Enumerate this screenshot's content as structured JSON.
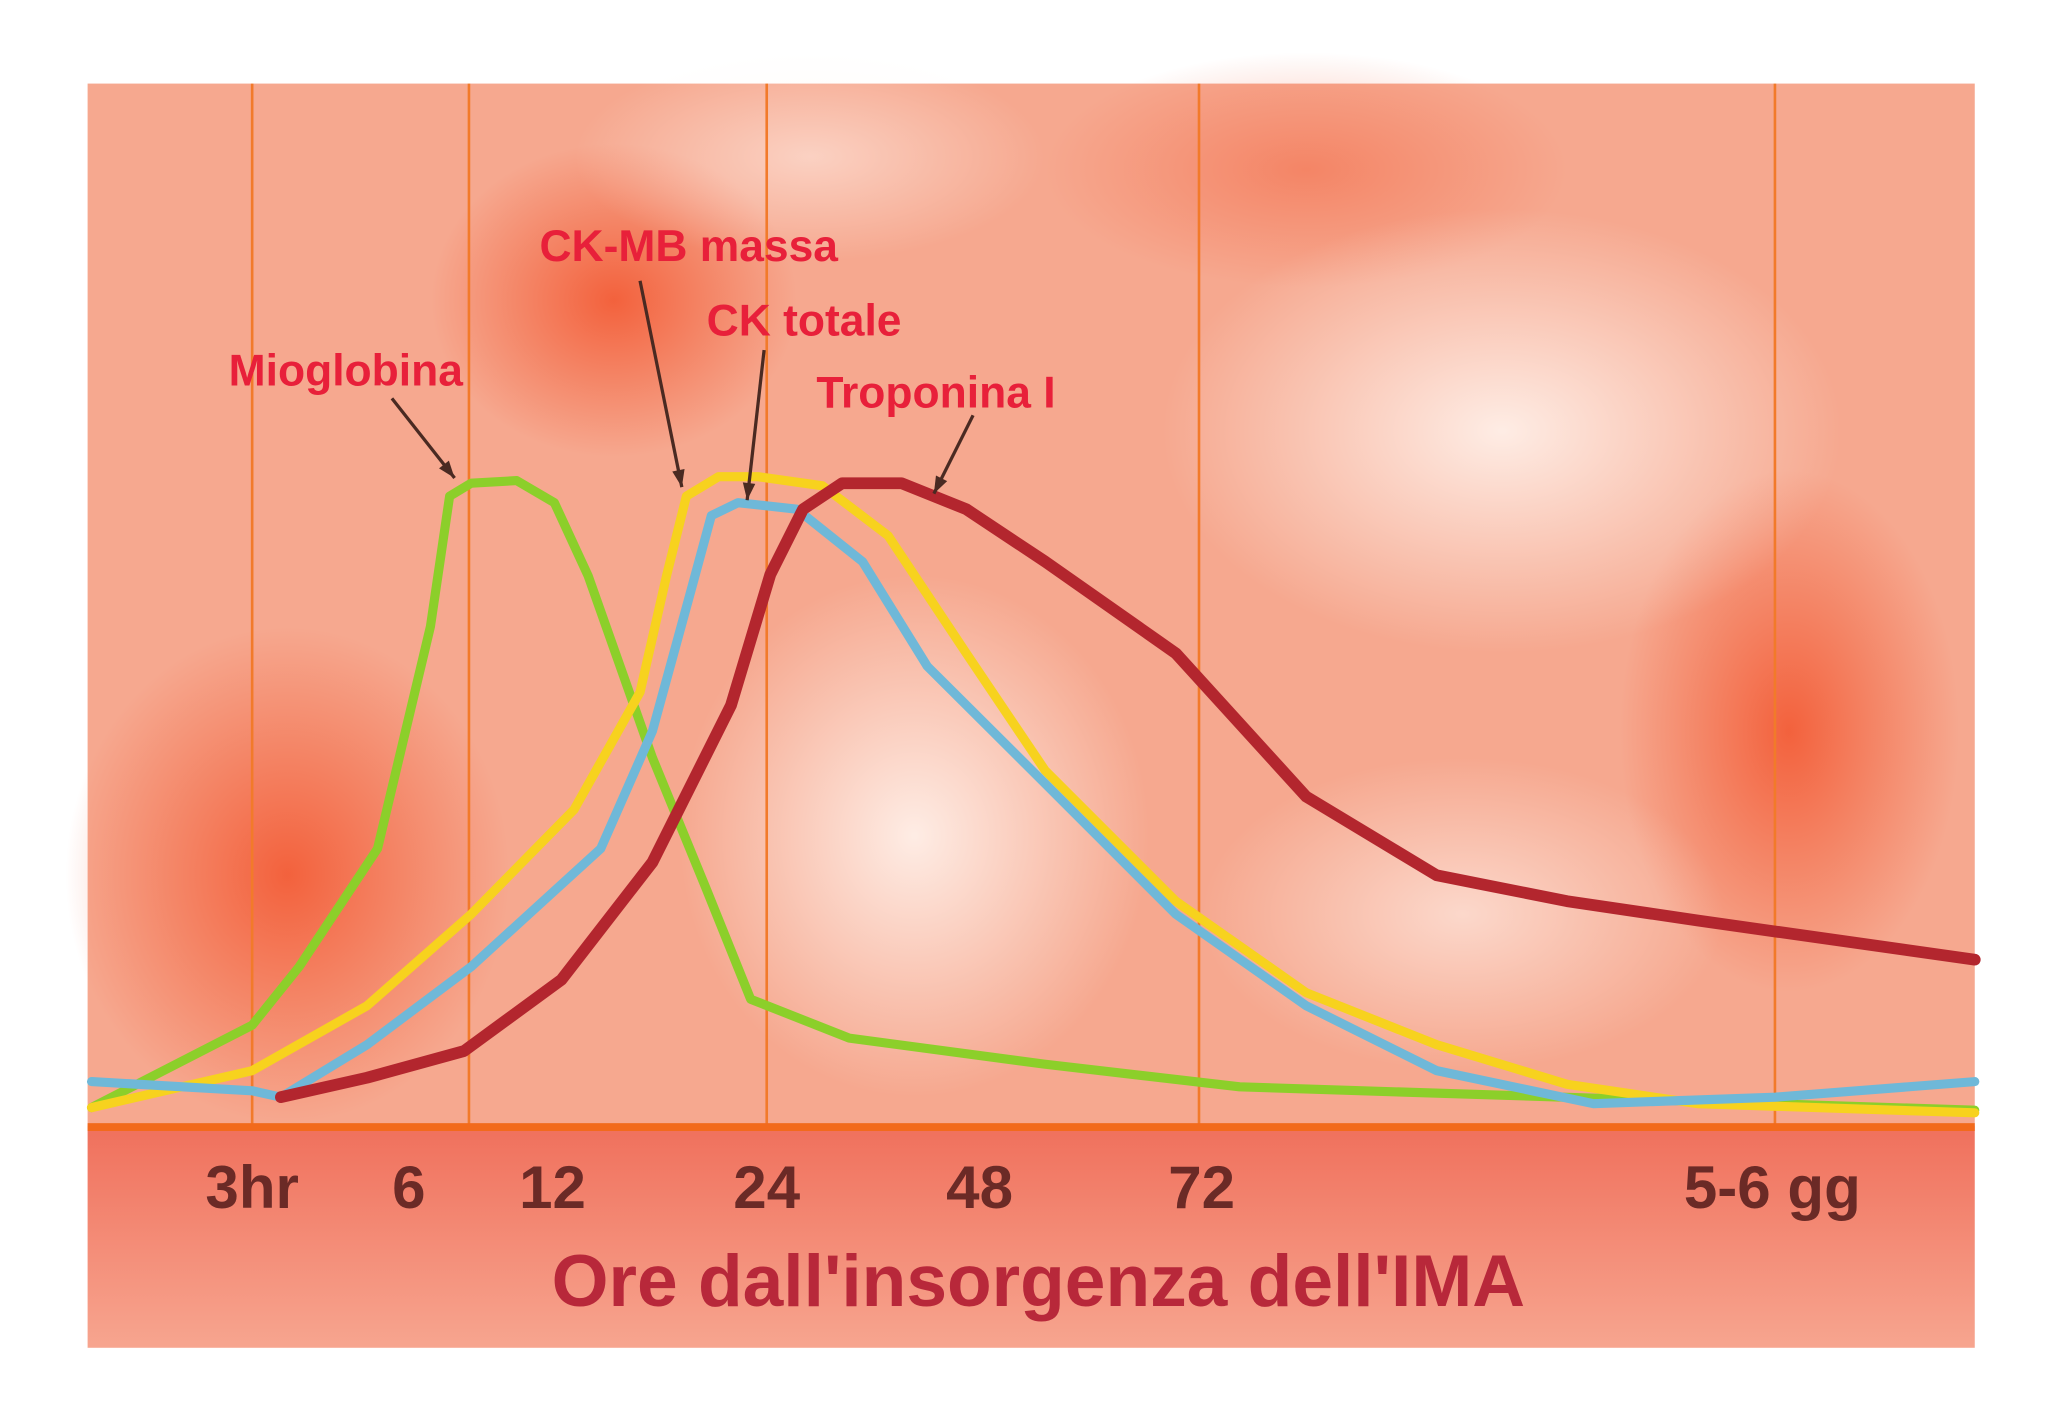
{
  "chart_data": {
    "type": "line",
    "title": "",
    "xlabel": "Ore dall'insorgenza dell'IMA",
    "ylabel": "",
    "x_tick_labels": [
      {
        "hours": 3,
        "label": "3hr"
      },
      {
        "hours": 6,
        "label": "6"
      },
      {
        "hours": 12,
        "label": "12"
      },
      {
        "hours": 24,
        "label": "24"
      },
      {
        "hours": 48,
        "label": "48"
      },
      {
        "hours": 72,
        "label": "72"
      },
      {
        "hours": 132,
        "label": "5-6 gg"
      }
    ],
    "grid": "vertical lines",
    "series": [
      {
        "name": "Mioglobina",
        "color": "#8ccf2a",
        "x": [
          0,
          3,
          3.9,
          5.4,
          6.9,
          7.7,
          8.6,
          10.5,
          12.1,
          14,
          17.6,
          20.6,
          23.1,
          33.3,
          55,
          76,
          110,
          152
        ],
        "y": [
          2.8,
          15.5,
          24.5,
          42.7,
          76.9,
          97,
          99,
          99.4,
          96,
          84.7,
          56.7,
          36.6,
          19.5,
          13.5,
          9.5,
          6,
          4.4,
          2.4
        ]
      },
      {
        "name": "CK-MB massa",
        "color": "#f7d21e",
        "x": [
          0,
          3,
          5.2,
          8.6,
          13.2,
          16.9,
          18.4,
          19.5,
          21.3,
          23.5,
          30.3,
          37.7,
          46.5,
          55.1,
          69.2,
          83,
          96.7,
          110.4,
          124.2,
          152
        ],
        "y": [
          2.8,
          8.5,
          18.5,
          32.6,
          48.7,
          66.8,
          84.9,
          97,
          100,
          100,
          98.6,
          90.9,
          72.8,
          54.7,
          34.6,
          20.5,
          12.5,
          6.4,
          3.4,
          2
        ]
      },
      {
        "name": "CK totale",
        "color": "#6fb8d8",
        "x": [
          0,
          3,
          3.55,
          5.2,
          8.6,
          14.7,
          17.6,
          19.8,
          20.9,
          22.4,
          27.4,
          34.8,
          42.1,
          55.1,
          69.2,
          83,
          96.7,
          113.2,
          132.3,
          152
        ],
        "y": [
          6.8,
          5.4,
          4.4,
          12.5,
          24.5,
          42.7,
          60.8,
          82.9,
          94,
          96,
          95,
          86.9,
          70.8,
          52.7,
          32.6,
          18.5,
          8.5,
          3.4,
          4.4,
          6.8
        ]
      },
      {
        "name": "Troponina I",
        "color": "#b3262e",
        "x": [
          3.55,
          5.2,
          8.3,
          12.5,
          17.6,
          22,
          24.4,
          28.1,
          32.5,
          39.2,
          46.5,
          55.1,
          69.2,
          83,
          96.7,
          110.4,
          124.2,
          152
        ],
        "y": [
          4.4,
          7.4,
          11.5,
          22.5,
          40.6,
          64.8,
          84.9,
          95,
          99,
          99,
          95,
          86.9,
          72.8,
          50.7,
          38.6,
          34.6,
          31.6,
          25.6
        ]
      }
    ]
  }
}
